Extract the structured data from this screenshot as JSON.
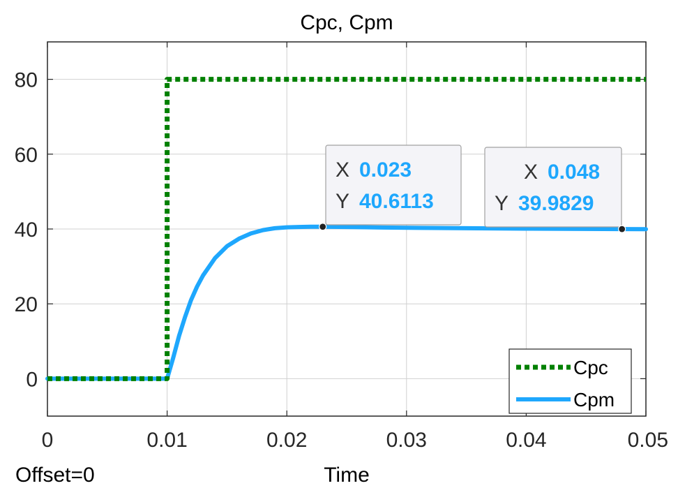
{
  "chart_data": {
    "type": "line",
    "title": "Cpc, Cpm",
    "xlabel": "Time",
    "ylabel": "",
    "xlim": [
      0,
      0.05
    ],
    "ylim": [
      -10,
      90
    ],
    "x_ticks": [
      "0",
      "0.01",
      "0.02",
      "0.03",
      "0.04",
      "0.05"
    ],
    "x_tick_values": [
      0,
      0.01,
      0.02,
      0.03,
      0.04,
      0.05
    ],
    "y_ticks": [
      "0",
      "20",
      "40",
      "60",
      "80"
    ],
    "y_tick_values": [
      0,
      20,
      40,
      60,
      80
    ],
    "grid": true,
    "legend_position": "bottom-right",
    "series": [
      {
        "name": "Cpc",
        "color": "#008000",
        "style": "dotted",
        "x": [
          0,
          0.01,
          0.01,
          0.05
        ],
        "y": [
          0,
          0,
          80,
          80
        ]
      },
      {
        "name": "Cpm",
        "color": "#1EA7FD",
        "style": "solid",
        "x": [
          0,
          0.01,
          0.0105,
          0.011,
          0.0115,
          0.012,
          0.0125,
          0.013,
          0.014,
          0.015,
          0.016,
          0.017,
          0.018,
          0.019,
          0.02,
          0.021,
          0.022,
          0.023,
          0.025,
          0.028,
          0.031,
          0.035,
          0.04,
          0.045,
          0.048,
          0.05
        ],
        "y": [
          0,
          0,
          5.5,
          11.5,
          16.5,
          21,
          24.6,
          27.6,
          32.2,
          35.4,
          37.4,
          38.8,
          39.7,
          40.2,
          40.45,
          40.55,
          40.6,
          40.6113,
          40.55,
          40.4,
          40.3,
          40.2,
          40.1,
          40.02,
          39.9829,
          39.97
        ]
      }
    ],
    "annotations": [
      {
        "label_x": "X",
        "label_y": "Y",
        "x": 0.023,
        "y": 40.6113,
        "x_text": "0.023",
        "y_text": "40.6113"
      },
      {
        "label_x": "X",
        "label_y": "Y",
        "x": 0.048,
        "y": 39.9829,
        "x_text": "0.048",
        "y_text": "39.9829"
      }
    ],
    "footer_left": "Offset=0"
  },
  "colors": {
    "value_text": "#1EA7FD",
    "grid": "#d0d0d0",
    "axes": "#262626"
  }
}
